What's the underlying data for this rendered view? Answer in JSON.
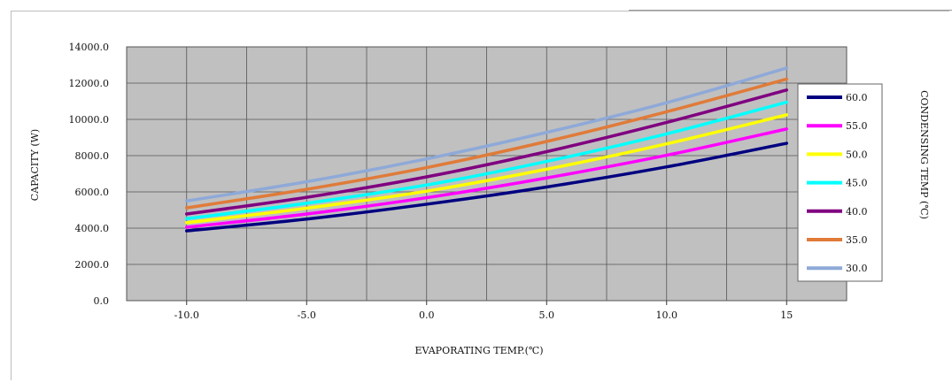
{
  "chart_data": {
    "type": "line",
    "xlabel": "EVAPORATING TEMP.(℃)",
    "ylabel": "CAPACITY (W)",
    "legend_title": "CONDENSING TEMP (℃)",
    "legend_position": "right",
    "grid": true,
    "x_ticks": [
      -10,
      -5,
      0,
      5,
      10,
      15
    ],
    "x_tick_labels": [
      "-10.0",
      "-5.0",
      "0.0",
      "5.0",
      "10.0",
      "15"
    ],
    "xlim": [
      -12.5,
      17.5
    ],
    "y_ticks": [
      0,
      2000,
      4000,
      6000,
      8000,
      10000,
      12000,
      14000
    ],
    "y_tick_labels": [
      "0.0",
      "2000.0",
      "4000.0",
      "6000.0",
      "8000.0",
      "10000.0",
      "12000.0",
      "14000.0"
    ],
    "ylim": [
      0,
      14000
    ],
    "x": [
      -10,
      -5,
      0,
      5,
      10,
      15
    ],
    "series": [
      {
        "name": "60.0",
        "color": "#000080",
        "values": [
          3850,
          4500,
          5320,
          6270,
          7380,
          8680
        ]
      },
      {
        "name": "55.0",
        "color": "#ff00ff",
        "values": [
          4050,
          4780,
          5680,
          6770,
          8020,
          9470
        ]
      },
      {
        "name": "50.0",
        "color": "#ffff00",
        "values": [
          4300,
          5100,
          6040,
          7250,
          8650,
          10250
        ]
      },
      {
        "name": "45.0",
        "color": "#00ffff",
        "values": [
          4520,
          5370,
          6380,
          7680,
          9200,
          10950
        ]
      },
      {
        "name": "40.0",
        "color": "#800080",
        "values": [
          4780,
          5700,
          6830,
          8220,
          9830,
          11620
        ]
      },
      {
        "name": "35.0",
        "color": "#e07b39",
        "values": [
          5120,
          6140,
          7340,
          8780,
          10420,
          12220
        ]
      },
      {
        "name": "30.0",
        "color": "#8ea9d8",
        "values": [
          5500,
          6560,
          7820,
          9280,
          10920,
          12830
        ]
      }
    ]
  }
}
